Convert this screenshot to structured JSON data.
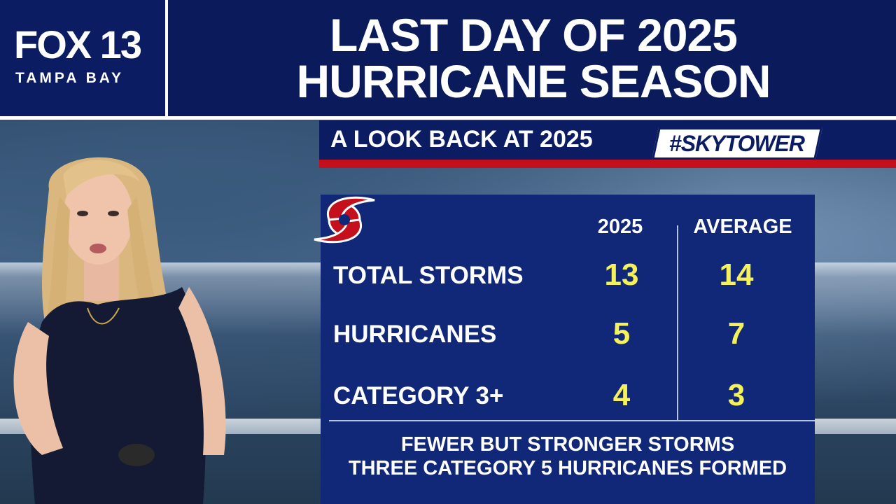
{
  "header": {
    "logo_main": "FOX 13",
    "logo_sub": "TAMPA BAY",
    "headline_line1": "LAST DAY OF 2025",
    "headline_line2": "HURRICANE SEASON"
  },
  "subtitle": {
    "text": "A LOOK BACK AT 2025",
    "hashtag": "#SKYTOWER"
  },
  "table": {
    "columns": [
      "2025",
      "AVERAGE"
    ],
    "rows": [
      {
        "label": "TOTAL STORMS",
        "v2025": "13",
        "avg": "14"
      },
      {
        "label": "HURRICANES",
        "v2025": "5",
        "avg": "7"
      },
      {
        "label": "CATEGORY 3+",
        "v2025": "4",
        "avg": "3"
      }
    ]
  },
  "footnote": {
    "line1": "FEWER BUT STRONGER STORMS",
    "line2": "THREE CATEGORY 5 HURRICANES FORMED"
  },
  "icons": {
    "hurricane": "hurricane-symbol-icon"
  },
  "colors": {
    "navy": "#0b1c63",
    "panel": "#102877",
    "red": "#c3101c",
    "value_yellow": "#f4f15a"
  }
}
